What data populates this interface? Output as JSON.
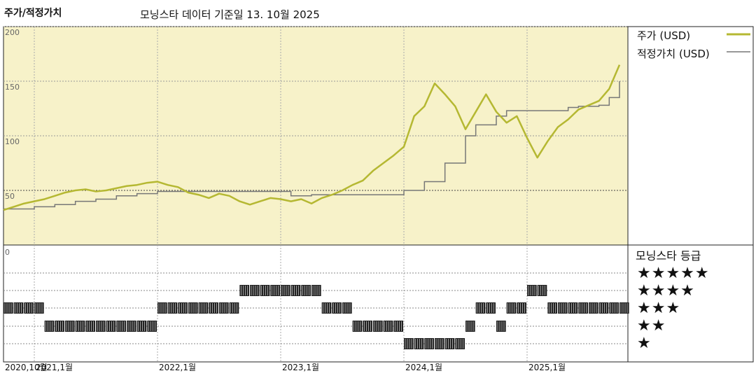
{
  "header": {
    "title": "주가/적정가치",
    "subtitle": "모닝스타 데이터 기준일 13. 10월 2025"
  },
  "legend": {
    "price": "주가 (USD)",
    "fair_value": "적정가치 (USD)"
  },
  "rating": {
    "title": "모닝스타 등급",
    "levels": [
      "★★★★★",
      "★★★★",
      "★★★",
      "★★",
      "★"
    ]
  },
  "colors": {
    "price": "#b5b832",
    "fair_value": "#777777",
    "plot_bg": "#f7f2c9",
    "bars": "#222222"
  },
  "chart_data": [
    {
      "type": "line",
      "title": "주가/적정가치",
      "ylim": [
        0,
        200
      ],
      "yticks": [
        "50",
        "100",
        "150",
        "200"
      ],
      "xticks": [
        "2020,10월",
        "2021,1월",
        "2022,1월",
        "2023,1월",
        "2024,1월",
        "2025,1월"
      ],
      "x_range": [
        "2020-10",
        "2025-10"
      ],
      "series": [
        {
          "name": "주가 (USD)",
          "points": [
            [
              "2020-10",
              32
            ],
            [
              "2020-11",
              35
            ],
            [
              "2020-12",
              38
            ],
            [
              "2021-01",
              40
            ],
            [
              "2021-02",
              42
            ],
            [
              "2021-03",
              45
            ],
            [
              "2021-04",
              48
            ],
            [
              "2021-05",
              50
            ],
            [
              "2021-06",
              51
            ],
            [
              "2021-07",
              49
            ],
            [
              "2021-08",
              50
            ],
            [
              "2021-09",
              52
            ],
            [
              "2021-10",
              54
            ],
            [
              "2021-11",
              55
            ],
            [
              "2021-12",
              57
            ],
            [
              "2022-01",
              58
            ],
            [
              "2022-02",
              55
            ],
            [
              "2022-03",
              53
            ],
            [
              "2022-04",
              48
            ],
            [
              "2022-05",
              46
            ],
            [
              "2022-06",
              43
            ],
            [
              "2022-07",
              47
            ],
            [
              "2022-08",
              45
            ],
            [
              "2022-09",
              40
            ],
            [
              "2022-10",
              37
            ],
            [
              "2022-11",
              40
            ],
            [
              "2022-12",
              43
            ],
            [
              "2023-01",
              42
            ],
            [
              "2023-02",
              40
            ],
            [
              "2023-03",
              42
            ],
            [
              "2023-04",
              38
            ],
            [
              "2023-05",
              43
            ],
            [
              "2023-06",
              46
            ],
            [
              "2023-07",
              50
            ],
            [
              "2023-08",
              55
            ],
            [
              "2023-09",
              59
            ],
            [
              "2023-10",
              68
            ],
            [
              "2023-11",
              75
            ],
            [
              "2023-12",
              82
            ],
            [
              "2024-01",
              90
            ],
            [
              "2024-02",
              118
            ],
            [
              "2024-03",
              127
            ],
            [
              "2024-04",
              148
            ],
            [
              "2024-05",
              138
            ],
            [
              "2024-06",
              127
            ],
            [
              "2024-07",
              106
            ],
            [
              "2024-08",
              122
            ],
            [
              "2024-09",
              138
            ],
            [
              "2024-10",
              122
            ],
            [
              "2024-11",
              112
            ],
            [
              "2024-12",
              118
            ],
            [
              "2025-01",
              98
            ],
            [
              "2025-02",
              80
            ],
            [
              "2025-03",
              95
            ],
            [
              "2025-04",
              108
            ],
            [
              "2025-05",
              115
            ],
            [
              "2025-06",
              124
            ],
            [
              "2025-07",
              128
            ],
            [
              "2025-08",
              132
            ],
            [
              "2025-09",
              143
            ],
            [
              "2025-10",
              165
            ]
          ]
        },
        {
          "name": "적정가치 (USD)",
          "points": [
            [
              "2020-10",
              33
            ],
            [
              "2021-01",
              35
            ],
            [
              "2021-03",
              37
            ],
            [
              "2021-05",
              40
            ],
            [
              "2021-07",
              42
            ],
            [
              "2021-09",
              45
            ],
            [
              "2021-11",
              47
            ],
            [
              "2022-01",
              49
            ],
            [
              "2023-02",
              45
            ],
            [
              "2023-04",
              46
            ],
            [
              "2024-01",
              50
            ],
            [
              "2024-03",
              58
            ],
            [
              "2024-05",
              75
            ],
            [
              "2024-07",
              100
            ],
            [
              "2024-08",
              110
            ],
            [
              "2024-10",
              118
            ],
            [
              "2024-11",
              123
            ],
            [
              "2025-05",
              126
            ],
            [
              "2025-06",
              127
            ],
            [
              "2025-08",
              128
            ],
            [
              "2025-09",
              135
            ],
            [
              "2025-10",
              150
            ]
          ]
        }
      ]
    },
    {
      "type": "bar",
      "title": "모닝스타 등급",
      "levels": [
        5,
        4,
        3,
        2,
        1
      ],
      "ratings_by_month": [
        [
          "2020-10",
          3
        ],
        [
          "2020-11",
          3
        ],
        [
          "2020-12",
          3
        ],
        [
          "2021-01",
          3
        ],
        [
          "2021-02",
          2
        ],
        [
          "2021-03",
          2
        ],
        [
          "2021-04",
          2
        ],
        [
          "2021-05",
          2
        ],
        [
          "2021-06",
          2
        ],
        [
          "2021-07",
          2
        ],
        [
          "2021-08",
          2
        ],
        [
          "2021-09",
          2
        ],
        [
          "2021-10",
          2
        ],
        [
          "2021-11",
          2
        ],
        [
          "2021-12",
          2
        ],
        [
          "2022-01",
          3
        ],
        [
          "2022-02",
          3
        ],
        [
          "2022-03",
          3
        ],
        [
          "2022-04",
          3
        ],
        [
          "2022-05",
          3
        ],
        [
          "2022-06",
          3
        ],
        [
          "2022-07",
          3
        ],
        [
          "2022-08",
          3
        ],
        [
          "2022-09",
          4
        ],
        [
          "2022-10",
          4
        ],
        [
          "2022-11",
          4
        ],
        [
          "2022-12",
          4
        ],
        [
          "2023-01",
          4
        ],
        [
          "2023-02",
          4
        ],
        [
          "2023-03",
          4
        ],
        [
          "2023-04",
          4
        ],
        [
          "2023-05",
          3
        ],
        [
          "2023-06",
          3
        ],
        [
          "2023-07",
          3
        ],
        [
          "2023-08",
          2
        ],
        [
          "2023-09",
          2
        ],
        [
          "2023-10",
          2
        ],
        [
          "2023-11",
          2
        ],
        [
          "2023-12",
          2
        ],
        [
          "2024-01",
          1
        ],
        [
          "2024-02",
          1
        ],
        [
          "2024-03",
          1
        ],
        [
          "2024-04",
          1
        ],
        [
          "2024-05",
          1
        ],
        [
          "2024-06",
          1
        ],
        [
          "2024-07",
          2
        ],
        [
          "2024-08",
          3
        ],
        [
          "2024-09",
          3
        ],
        [
          "2024-10",
          2
        ],
        [
          "2024-11",
          3
        ],
        [
          "2024-12",
          3
        ],
        [
          "2025-01",
          4
        ],
        [
          "2025-02",
          4
        ],
        [
          "2025-03",
          3
        ],
        [
          "2025-04",
          3
        ],
        [
          "2025-05",
          3
        ],
        [
          "2025-06",
          3
        ],
        [
          "2025-07",
          3
        ],
        [
          "2025-08",
          3
        ],
        [
          "2025-09",
          3
        ],
        [
          "2025-10",
          3
        ]
      ]
    }
  ]
}
